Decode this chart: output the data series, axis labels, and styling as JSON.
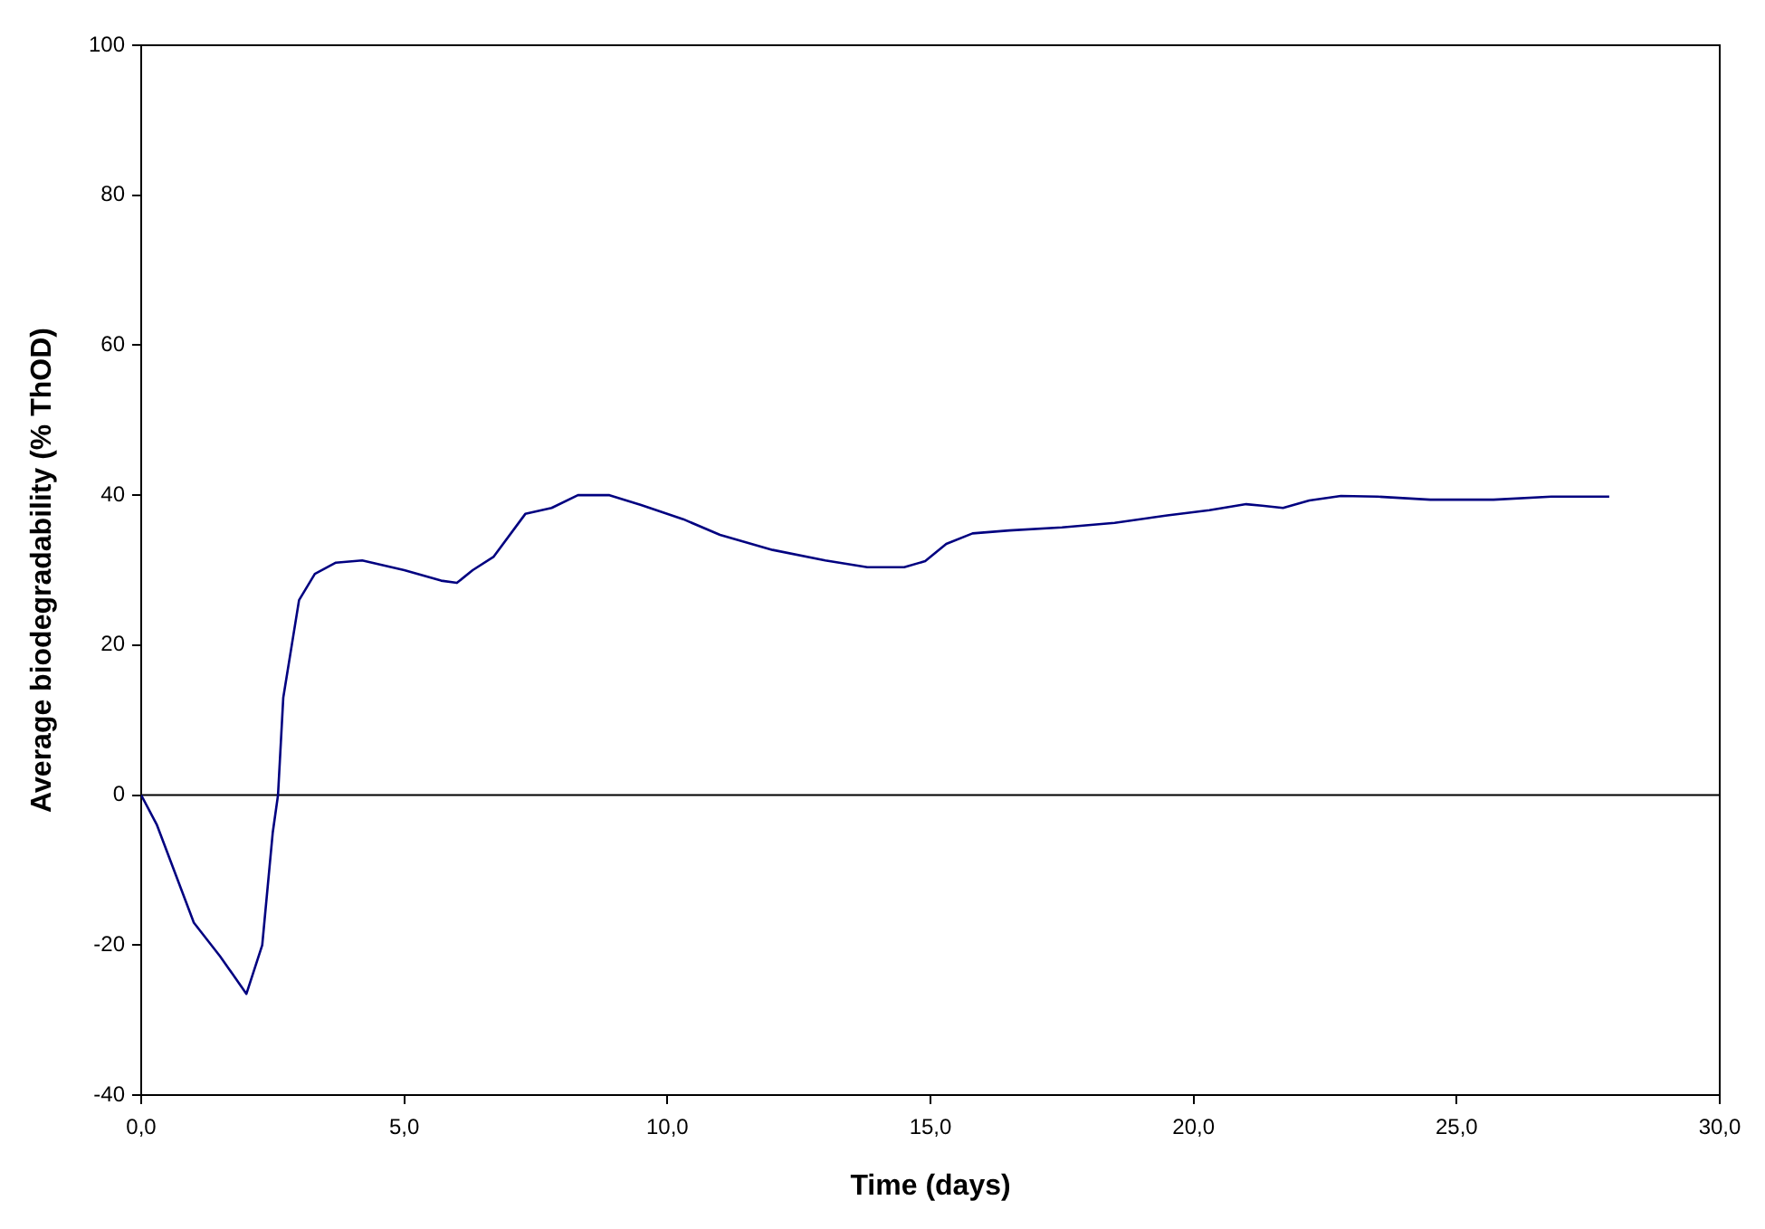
{
  "chart_data": {
    "type": "line",
    "xlabel": "Time (days)",
    "ylabel": "Average biodegradability (% ThOD)",
    "x": [
      0,
      0.3,
      1,
      1.5,
      2,
      2.3,
      2.5,
      2.6,
      2.7,
      3,
      3.3,
      3.7,
      4.2,
      5,
      5.7,
      6,
      6.3,
      6.7,
      7.3,
      7.8,
      8.3,
      8.9,
      9.5,
      10.3,
      11,
      12,
      13,
      13.8,
      14.5,
      14.9,
      15.3,
      15.8,
      16.5,
      17.5,
      18.5,
      19.5,
      20.3,
      21,
      21.3,
      21.7,
      22.2,
      22.8,
      23.5,
      24.5,
      25.7,
      26.8,
      27.9
    ],
    "series": [
      {
        "color": "#000080",
        "values": [
          0,
          -4,
          -17,
          -21.5,
          -26.5,
          -20,
          -5,
          0,
          13,
          26,
          29.5,
          31,
          31.3,
          30,
          28.6,
          28.3,
          30,
          31.8,
          37.5,
          38.3,
          40,
          40,
          38.7,
          36.8,
          34.7,
          32.7,
          31.3,
          30.4,
          30.4,
          31.2,
          33.5,
          34.9,
          35.3,
          35.7,
          36.3,
          37.3,
          38,
          38.8,
          38.6,
          38.3,
          39.3,
          39.9,
          39.8,
          39.4,
          39.4,
          39.8,
          39.8
        ]
      }
    ],
    "xlim": [
      0,
      30
    ],
    "xticks": [
      {
        "value": 0,
        "label": "0,0"
      },
      {
        "value": 5,
        "label": "5,0"
      },
      {
        "value": 10,
        "label": "10,0"
      },
      {
        "value": 15,
        "label": "15,0"
      },
      {
        "value": 20,
        "label": "20,0"
      },
      {
        "value": 25,
        "label": "25,0"
      },
      {
        "value": 30,
        "label": "30,0"
      }
    ],
    "ylim": [
      -40,
      100
    ],
    "yticks": [
      -40,
      -20,
      0,
      20,
      40,
      60,
      80,
      100
    ],
    "ref_lines": [
      {
        "axis": "y",
        "value": 0,
        "color": "#000000"
      }
    ],
    "grid": false,
    "legend": false,
    "marker": "none",
    "line_style": "solid"
  }
}
